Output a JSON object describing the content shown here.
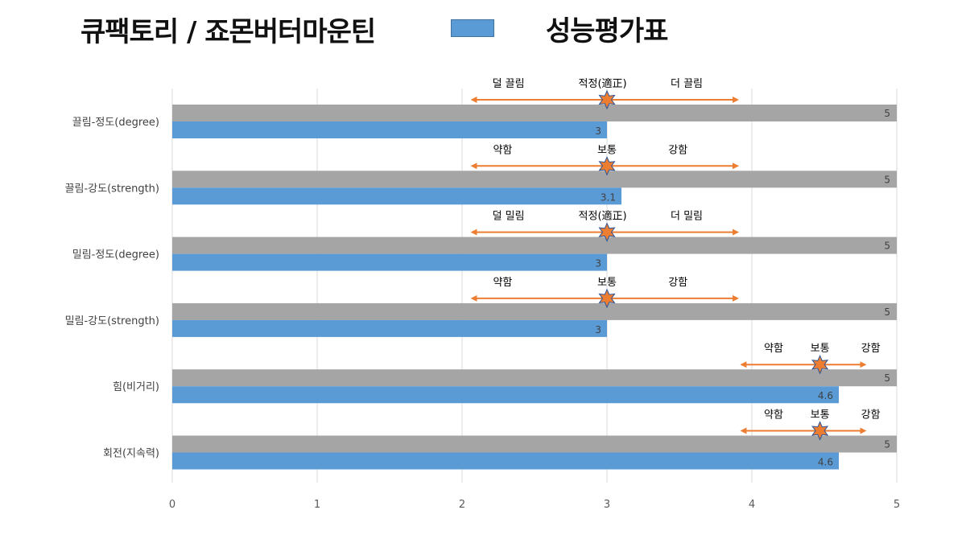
{
  "header": {
    "title": "큐팩토리 / 죠몬버터마운틴",
    "legend_label": "성능평가표",
    "legend_color": "#5B9BD5"
  },
  "chart_data": {
    "type": "bar",
    "orientation": "horizontal",
    "title": "큐팩토리 / 죠몬버터마운틴",
    "xlim": [
      0,
      5
    ],
    "xticks": [
      0,
      1,
      2,
      3,
      4,
      5
    ],
    "grid": true,
    "legend_placement": "top",
    "categories": [
      "끌림-정도(degree)",
      "끌림-강도(strength)",
      "밀림-정도(degree)",
      "밀림-강도(strength)",
      "힘(비거리)",
      "회전(지속력)"
    ],
    "series": [
      {
        "name": "",
        "color": "#A5A5A5",
        "values": [
          5,
          5,
          5,
          5,
          5,
          5
        ]
      },
      {
        "name": "성능평가표",
        "color": "#5B9BD5",
        "values": [
          3,
          3.1,
          3,
          3,
          4.6,
          4.6
        ]
      }
    ],
    "annotations": [
      {
        "from": 2.07,
        "to": 3.9,
        "marker": 3.0,
        "labels": [
          {
            "text": "덜 끌림",
            "x": 2.32
          },
          {
            "text": "적정(適正)",
            "x": 2.97
          },
          {
            "text": "더 끌림",
            "x": 3.55
          }
        ]
      },
      {
        "from": 2.07,
        "to": 3.9,
        "marker": 3.0,
        "labels": [
          {
            "text": "약함",
            "x": 2.28
          },
          {
            "text": "보통",
            "x": 3.0
          },
          {
            "text": "강함",
            "x": 3.49
          }
        ]
      },
      {
        "from": 2.07,
        "to": 3.9,
        "marker": 3.0,
        "labels": [
          {
            "text": "덜 밀림",
            "x": 2.32
          },
          {
            "text": "적정(適正)",
            "x": 2.97
          },
          {
            "text": "더 밀림",
            "x": 3.55
          }
        ]
      },
      {
        "from": 2.07,
        "to": 3.9,
        "marker": 3.0,
        "labels": [
          {
            "text": "약함",
            "x": 2.28
          },
          {
            "text": "보통",
            "x": 3.0
          },
          {
            "text": "강함",
            "x": 3.49
          }
        ]
      },
      {
        "from": 3.93,
        "to": 4.78,
        "marker": 4.47,
        "labels": [
          {
            "text": "약함",
            "x": 4.15
          },
          {
            "text": "보통",
            "x": 4.47
          },
          {
            "text": "강함",
            "x": 4.82
          }
        ]
      },
      {
        "from": 3.93,
        "to": 4.78,
        "marker": 4.47,
        "labels": [
          {
            "text": "약함",
            "x": 4.15
          },
          {
            "text": "보통",
            "x": 4.47
          },
          {
            "text": "강함",
            "x": 4.82
          }
        ]
      }
    ],
    "annotation_color": "#ED7D31"
  }
}
